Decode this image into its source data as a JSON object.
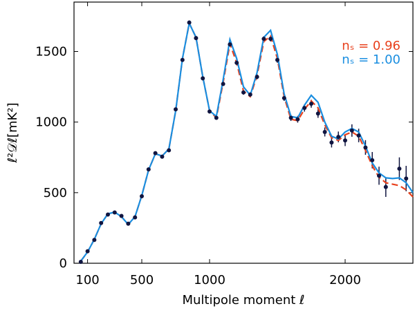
{
  "chart_data": {
    "type": "line",
    "xlabel": "Multipole moment ℓ",
    "ylabel": "ℓ²𝒟ℓ[mK²]",
    "xlim": [
      0,
      2500
    ],
    "ylim": [
      0,
      1850
    ],
    "xticks": [
      100,
      500,
      1000,
      2000
    ],
    "yticks": [
      0,
      500,
      1000,
      1500
    ],
    "legend": "upper right",
    "x": [
      50,
      100,
      150,
      200,
      250,
      300,
      350,
      400,
      450,
      500,
      550,
      600,
      650,
      700,
      750,
      800,
      850,
      900,
      950,
      1000,
      1050,
      1100,
      1150,
      1200,
      1250,
      1300,
      1350,
      1400,
      1450,
      1500,
      1550,
      1600,
      1650,
      1700,
      1750,
      1800,
      1850,
      1900,
      1950,
      2000,
      2050,
      2100,
      2150,
      2200,
      2250,
      2300,
      2350,
      2400,
      2450,
      2500
    ],
    "series": [
      {
        "name": "nₛ = 0.96",
        "color": "#e8401c",
        "style": "dashed",
        "values": [
          15,
          80,
          170,
          280,
          350,
          362,
          330,
          275,
          330,
          480,
          660,
          775,
          760,
          810,
          1080,
          1450,
          1700,
          1600,
          1320,
          1080,
          1030,
          1280,
          1555,
          1420,
          1220,
          1180,
          1330,
          1570,
          1610,
          1450,
          1180,
          1020,
          1010,
          1090,
          1150,
          1100,
          980,
          890,
          870,
          910,
          930,
          900,
          800,
          690,
          610,
          570,
          560,
          550,
          520,
          470
        ]
      },
      {
        "name": "nₛ = 1.00",
        "color": "#1a8ee0",
        "style": "solid",
        "values": [
          15,
          80,
          170,
          280,
          350,
          362,
          330,
          275,
          330,
          480,
          660,
          775,
          760,
          810,
          1080,
          1450,
          1700,
          1600,
          1320,
          1080,
          1040,
          1300,
          1585,
          1450,
          1250,
          1190,
          1350,
          1600,
          1650,
          1480,
          1200,
          1040,
          1030,
          1120,
          1190,
          1140,
          1000,
          900,
          880,
          930,
          955,
          930,
          830,
          710,
          640,
          605,
          600,
          605,
          570,
          500
        ]
      }
    ],
    "points": {
      "color": "#101540",
      "x": [
        50,
        100,
        150,
        200,
        250,
        300,
        350,
        400,
        450,
        500,
        550,
        600,
        650,
        700,
        750,
        800,
        850,
        900,
        950,
        1000,
        1050,
        1100,
        1150,
        1200,
        1250,
        1300,
        1350,
        1400,
        1450,
        1500,
        1550,
        1600,
        1650,
        1700,
        1750,
        1800,
        1850,
        1900,
        1950,
        2000,
        2050,
        2100,
        2150,
        2200,
        2250,
        2300,
        2400,
        2450
      ],
      "values": [
        10,
        85,
        165,
        285,
        345,
        360,
        335,
        280,
        325,
        475,
        665,
        780,
        755,
        800,
        1090,
        1440,
        1705,
        1595,
        1310,
        1075,
        1030,
        1270,
        1550,
        1420,
        1210,
        1195,
        1320,
        1590,
        1590,
        1440,
        1170,
        1030,
        1020,
        1100,
        1130,
        1060,
        930,
        855,
        895,
        870,
        940,
        905,
        820,
        730,
        620,
        540,
        670,
        600
      ],
      "errors": [
        4,
        5,
        6,
        7,
        8,
        8,
        8,
        8,
        8,
        9,
        10,
        11,
        11,
        12,
        13,
        14,
        15,
        15,
        15,
        14,
        14,
        15,
        16,
        16,
        16,
        16,
        17,
        18,
        19,
        20,
        20,
        22,
        24,
        26,
        28,
        30,
        32,
        35,
        38,
        40,
        44,
        48,
        52,
        58,
        64,
        70,
        80,
        90
      ]
    }
  }
}
